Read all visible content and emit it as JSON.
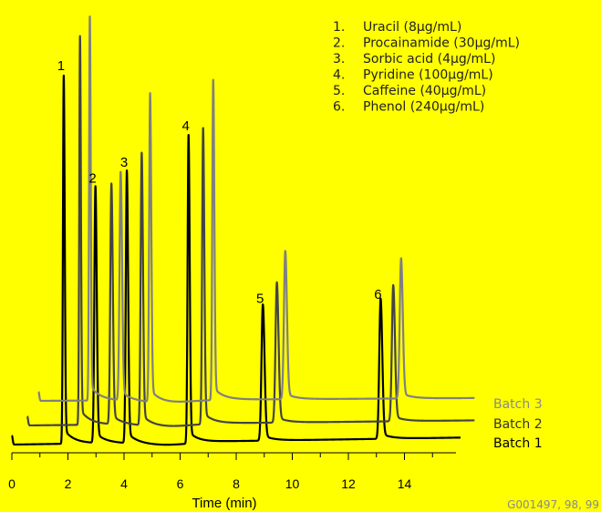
{
  "chart_data": {
    "type": "line",
    "xlabel": "Time (min)",
    "xlim": [
      0,
      16
    ],
    "x_ticks": [
      0,
      2,
      4,
      6,
      8,
      10,
      12,
      14
    ],
    "legend": [
      {
        "num": "1.",
        "text": "Uracil (8μg/mL)"
      },
      {
        "num": "2.",
        "text": "Procainamide (30μg/mL)"
      },
      {
        "num": "3.",
        "text": "Sorbic acid (4μg/mL)"
      },
      {
        "num": "4.",
        "text": "Pyridine (100μg/mL)"
      },
      {
        "num": "5.",
        "text": "Caffeine (40μg/mL)"
      },
      {
        "num": "6.",
        "text": "Phenol (240μg/mL)"
      }
    ],
    "peak_labels": [
      {
        "label": "1",
        "time": 1.85
      },
      {
        "label": "2",
        "time": 2.98
      },
      {
        "label": "3",
        "time": 4.1
      },
      {
        "label": "4",
        "time": 6.3
      },
      {
        "label": "5",
        "time": 8.95
      },
      {
        "label": "6",
        "time": 13.15
      }
    ],
    "series": [
      {
        "name": "Batch 1",
        "color": "#000000",
        "peaks": [
          {
            "time": 1.85,
            "height": 0.92
          },
          {
            "time": 2.98,
            "height": 0.64
          },
          {
            "time": 4.1,
            "height": 0.68
          },
          {
            "time": 6.3,
            "height": 0.77
          },
          {
            "time": 8.95,
            "height": 0.34
          },
          {
            "time": 13.15,
            "height": 0.35
          }
        ]
      },
      {
        "name": "Batch 2",
        "color": "#444444",
        "peaks": [
          {
            "time": 2.43,
            "height": 0.97
          },
          {
            "time": 3.55,
            "height": 0.6
          },
          {
            "time": 4.63,
            "height": 0.68
          },
          {
            "time": 6.82,
            "height": 0.74
          },
          {
            "time": 9.45,
            "height": 0.35
          },
          {
            "time": 13.6,
            "height": 0.34
          }
        ]
      },
      {
        "name": "Batch 3",
        "color": "#808080",
        "peaks": [
          {
            "time": 2.78,
            "height": 0.96
          },
          {
            "time": 3.88,
            "height": 0.57
          },
          {
            "time": 4.93,
            "height": 0.77
          },
          {
            "time": 7.18,
            "height": 0.8
          },
          {
            "time": 9.75,
            "height": 0.37
          },
          {
            "time": 13.88,
            "height": 0.35
          }
        ]
      }
    ]
  },
  "footer_code": "G001497, 98, 99"
}
